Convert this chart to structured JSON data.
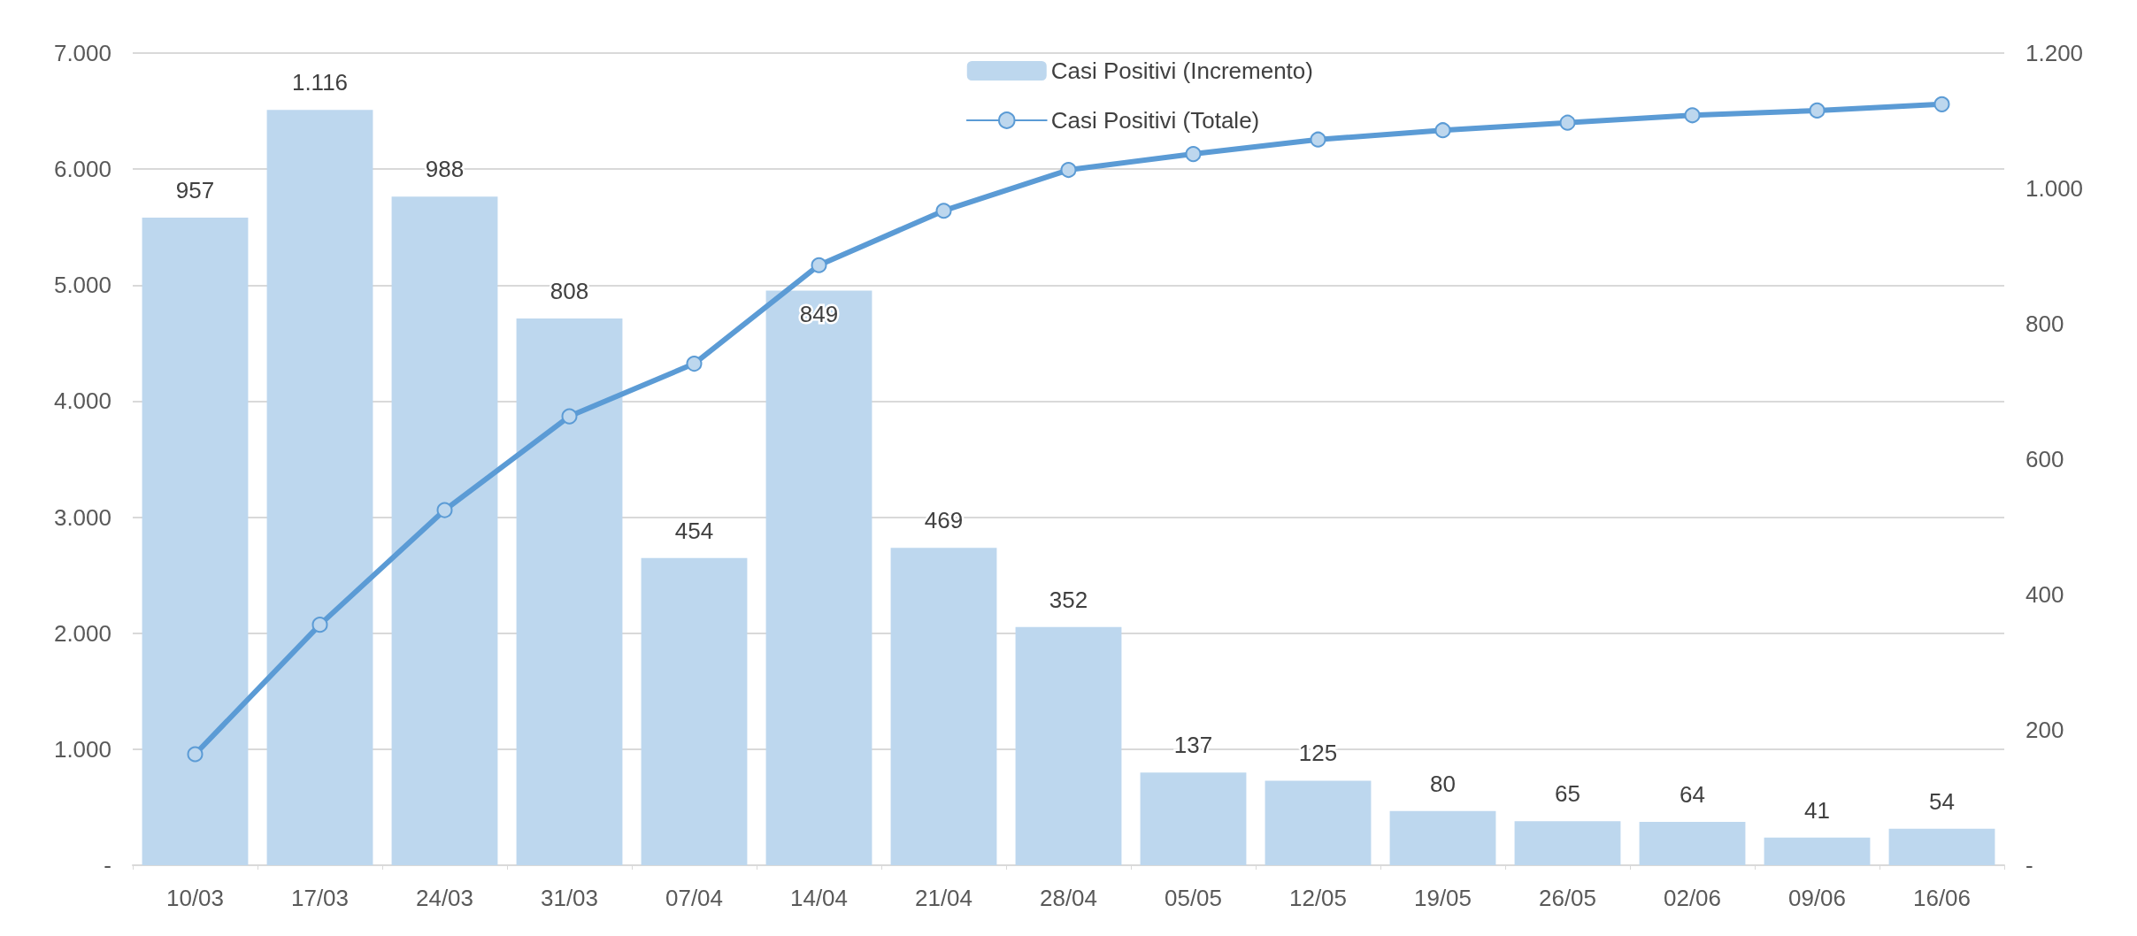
{
  "chart_data": {
    "type": "bar",
    "categories": [
      "10/03",
      "17/03",
      "24/03",
      "31/03",
      "07/04",
      "14/04",
      "21/04",
      "28/04",
      "05/05",
      "12/05",
      "19/05",
      "26/05",
      "02/06",
      "09/06",
      "16/06"
    ],
    "series": [
      {
        "name": "Casi Positivi (Incremento)",
        "type": "bar",
        "axis": "y2",
        "color": "#bdd7ee",
        "values": [
          957,
          1116,
          988,
          808,
          454,
          849,
          469,
          352,
          137,
          125,
          80,
          65,
          64,
          41,
          54
        ],
        "value_labels": [
          "957",
          "1.116",
          "988",
          "808",
          "454",
          "849",
          "469",
          "352",
          "137",
          "125",
          "80",
          "65",
          "64",
          "41",
          "54"
        ]
      },
      {
        "name": "Casi Positivi (Totale)",
        "type": "line",
        "color": "#5b9bd5",
        "marker": "circle",
        "line_style": "solid",
        "values": [
          957,
          2073,
          3061,
          3869,
          4323,
          5172,
          5641,
          5993,
          6130,
          6255,
          6335,
          6400,
          6464,
          6505,
          6559
        ]
      }
    ],
    "ylim": [
      0,
      7000
    ],
    "yticks": [
      {
        "value": 0,
        "label": "-"
      },
      {
        "value": 1000,
        "label": "1.000"
      },
      {
        "value": 2000,
        "label": "2.000"
      },
      {
        "value": 3000,
        "label": "3.000"
      },
      {
        "value": 4000,
        "label": "4.000"
      },
      {
        "value": 5000,
        "label": "5.000"
      },
      {
        "value": 6000,
        "label": "6.000"
      },
      {
        "value": 7000,
        "label": "7.000"
      }
    ],
    "y2lim": [
      0,
      1200
    ],
    "y2ticks": [
      {
        "value": 0,
        "label": "-"
      },
      {
        "value": 200,
        "label": "200"
      },
      {
        "value": 400,
        "label": "400"
      },
      {
        "value": 600,
        "label": "600"
      },
      {
        "value": 800,
        "label": "800"
      },
      {
        "value": 1000,
        "label": "1.000"
      },
      {
        "value": 1200,
        "label": "1.200"
      }
    ],
    "grid": "y",
    "legend": "top"
  }
}
